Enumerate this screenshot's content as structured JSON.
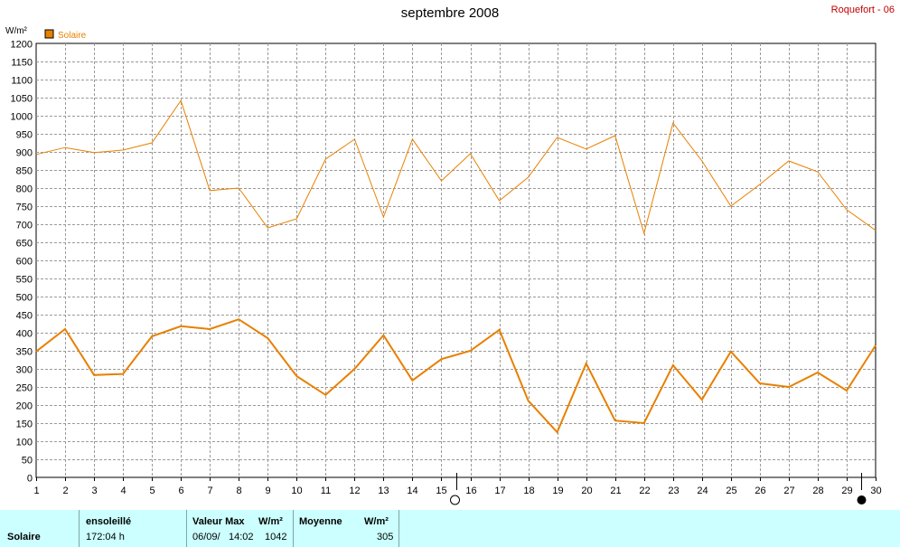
{
  "header": {
    "title": "septembre 2008",
    "station": "Roquefort - 06"
  },
  "legend": {
    "label": "Solaire",
    "color": "#e88000"
  },
  "footer": {
    "label": "Solaire",
    "sun_header": "ensoleillé",
    "sun_value": "172:04 h",
    "max_header": "Valeur Max",
    "max_unit": "W/m²",
    "max_date": "06/09/",
    "max_time": "14:02",
    "max_value": "1042",
    "mean_header": "Moyenne",
    "mean_unit": "W/m²",
    "mean_value": "305"
  },
  "chart_data": {
    "type": "line",
    "ylabel": "W/m²",
    "ylim": [
      0,
      1200
    ],
    "yticks": [
      0,
      50,
      100,
      150,
      200,
      250,
      300,
      350,
      400,
      450,
      500,
      550,
      600,
      650,
      700,
      750,
      800,
      850,
      900,
      950,
      1000,
      1050,
      1100,
      1150,
      1200
    ],
    "x": [
      1,
      2,
      3,
      4,
      5,
      6,
      7,
      8,
      9,
      10,
      11,
      12,
      13,
      14,
      15,
      16,
      17,
      18,
      19,
      20,
      21,
      22,
      23,
      24,
      25,
      26,
      27,
      28,
      29,
      30
    ],
    "grid": true,
    "color": "#e88000",
    "series": [
      {
        "role": "max",
        "values": [
          893,
          912,
          898,
          905,
          925,
          1042,
          793,
          800,
          690,
          715,
          880,
          935,
          720,
          935,
          820,
          895,
          765,
          830,
          940,
          908,
          945,
          675,
          980,
          875,
          750,
          810,
          875,
          845,
          740,
          683
        ]
      },
      {
        "role": "mean",
        "values": [
          348,
          410,
          283,
          286,
          390,
          418,
          410,
          437,
          385,
          280,
          228,
          300,
          393,
          268,
          327,
          350,
          408,
          212,
          125,
          315,
          157,
          150,
          310,
          215,
          348,
          260,
          250,
          290,
          240,
          365
        ]
      }
    ],
    "markers": [
      {
        "x": 15.5,
        "symbol": "first-quarter-moon"
      },
      {
        "x": 29.5,
        "symbol": "new-moon"
      }
    ]
  }
}
